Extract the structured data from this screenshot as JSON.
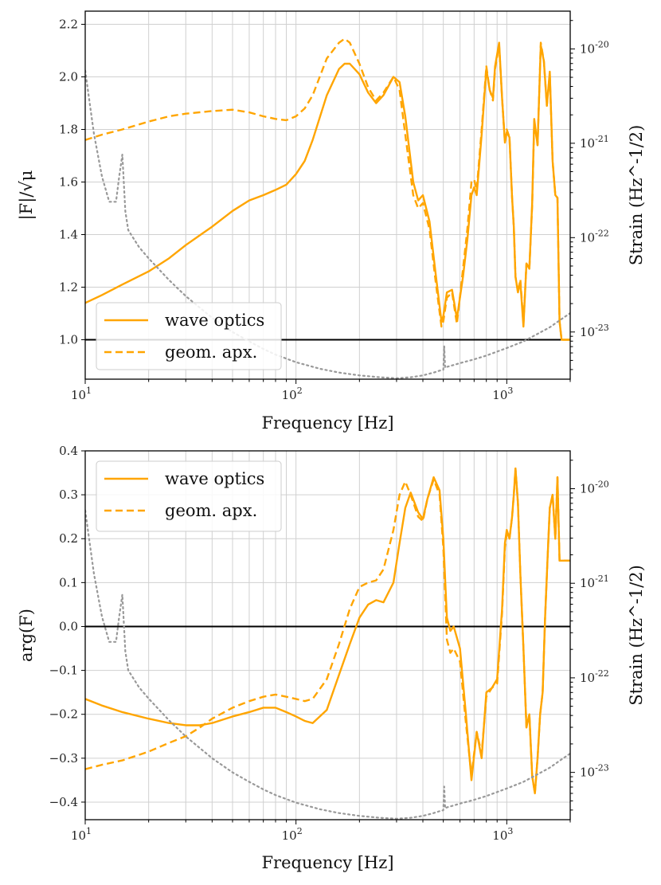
{
  "figure": {
    "colors": {
      "wave": "#FFA500",
      "geom": "#FFA500",
      "noise": "#999999",
      "zero": "#000000",
      "grid": "#d0d0d0",
      "frame": "#000000"
    }
  },
  "chart_data": [
    {
      "id": "magnitude",
      "type": "line",
      "xscale": "log",
      "xlim": [
        10,
        2000
      ],
      "ylim": [
        0.85,
        2.25
      ],
      "xlabel": "Frequency [Hz]",
      "ylabel": "|F|/√μ",
      "ylabel_right": "Strain (Hz^-1/2)",
      "yticks": [
        1.0,
        1.2,
        1.4,
        1.6,
        1.8,
        2.0,
        2.2
      ],
      "ytick_labels": [
        "1.0",
        "1.2",
        "1.4",
        "1.6",
        "1.8",
        "2.0",
        "2.2"
      ],
      "xticks": [
        10,
        100,
        1000
      ],
      "xtick_labels": [
        [
          "10",
          "1"
        ],
        [
          "10",
          "2"
        ],
        [
          "10",
          "3"
        ]
      ],
      "strain_lim_log10": [
        -23.5,
        -19.6
      ],
      "strain_ticks": [
        -23,
        -22,
        -21,
        -20
      ],
      "strain_tick_labels": [
        [
          "10",
          "-23"
        ],
        [
          "10",
          "-22"
        ],
        [
          "10",
          "-21"
        ],
        [
          "10",
          "-20"
        ]
      ],
      "hline": 1.0,
      "legend": {
        "position": "lower-left",
        "entries": [
          {
            "label": "wave optics",
            "style": "solid"
          },
          {
            "label": "geom. apx.",
            "style": "dashed"
          }
        ]
      },
      "series": [
        {
          "name": "wave optics",
          "style": "solid",
          "x": [
            10,
            12,
            15,
            20,
            25,
            30,
            40,
            50,
            60,
            70,
            80,
            90,
            100,
            110,
            120,
            140,
            160,
            170,
            180,
            200,
            220,
            240,
            260,
            290,
            310,
            330,
            360,
            380,
            400,
            430,
            460,
            490,
            500,
            520,
            550,
            580,
            620,
            650,
            680,
            700,
            720,
            760,
            800,
            830,
            860,
            880,
            920,
            950,
            980,
            1000,
            1030,
            1060,
            1080,
            1100,
            1130,
            1160,
            1200,
            1240,
            1280,
            1320,
            1350,
            1400,
            1450,
            1500,
            1550,
            1600,
            1650,
            1700,
            1740,
            1780,
            1820,
            1860,
            1900,
            1960,
            2000
          ],
          "y": [
            1.14,
            1.17,
            1.21,
            1.26,
            1.31,
            1.36,
            1.43,
            1.49,
            1.53,
            1.55,
            1.57,
            1.59,
            1.63,
            1.68,
            1.76,
            1.93,
            2.03,
            2.05,
            2.05,
            2.01,
            1.94,
            1.9,
            1.93,
            2.0,
            1.98,
            1.85,
            1.6,
            1.53,
            1.55,
            1.45,
            1.25,
            1.07,
            1.09,
            1.18,
            1.19,
            1.08,
            1.24,
            1.38,
            1.55,
            1.58,
            1.55,
            1.78,
            2.03,
            1.95,
            1.92,
            2.04,
            2.13,
            1.92,
            1.75,
            1.79,
            1.77,
            1.54,
            1.43,
            1.24,
            1.18,
            1.22,
            1.05,
            1.29,
            1.27,
            1.52,
            1.84,
            1.74,
            2.12,
            2.06,
            1.89,
            2.02,
            1.68,
            1.55,
            1.54,
            1.07,
            1.0,
            1.0,
            1.0,
            1.0,
            1.0
          ]
        },
        {
          "name": "geom. apx.",
          "style": "dashed",
          "x": [
            10,
            12,
            15,
            20,
            25,
            30,
            40,
            50,
            60,
            70,
            80,
            90,
            100,
            110,
            120,
            140,
            160,
            170,
            180,
            200,
            220,
            240,
            260,
            290,
            310,
            330,
            360,
            380,
            400,
            430,
            460,
            490,
            500,
            520,
            550,
            580,
            620,
            650,
            680,
            700,
            720,
            760,
            800,
            830,
            860,
            880,
            920,
            950,
            980,
            1000,
            1030,
            1060,
            1080,
            1100,
            1130,
            1160,
            1200,
            1240,
            1280,
            1320,
            1350,
            1400,
            1450,
            1500,
            1550,
            1600,
            1650,
            1700,
            1740,
            1780,
            1820,
            1860,
            1900,
            1960,
            2000
          ],
          "y": [
            1.76,
            1.78,
            1.8,
            1.83,
            1.85,
            1.86,
            1.87,
            1.875,
            1.865,
            1.85,
            1.84,
            1.835,
            1.85,
            1.88,
            1.93,
            2.07,
            2.13,
            2.145,
            2.13,
            2.05,
            1.96,
            1.91,
            1.94,
            2.0,
            1.95,
            1.78,
            1.55,
            1.5,
            1.52,
            1.42,
            1.22,
            1.05,
            1.07,
            1.16,
            1.18,
            1.06,
            1.27,
            1.42,
            1.6,
            1.61,
            1.57,
            1.8,
            2.04,
            1.95,
            1.91,
            2.03,
            2.12,
            1.92,
            1.75,
            1.8,
            1.77,
            1.54,
            1.43,
            1.24,
            1.18,
            1.23,
            1.06,
            1.29,
            1.27,
            1.51,
            1.83,
            1.74,
            2.13,
            2.06,
            1.89,
            2.01,
            1.68,
            1.55,
            1.54,
            1.07,
            1.0,
            1.0,
            1.0,
            1.0,
            1.0
          ]
        },
        {
          "name": "noise strain (right axis)",
          "style": "dotted",
          "axis": "right",
          "x": [
            10,
            11,
            12,
            13,
            14,
            14.5,
            15,
            15.5,
            16,
            18,
            20,
            25,
            30,
            40,
            50,
            60,
            70,
            80,
            100,
            130,
            160,
            200,
            250,
            300,
            350,
            400,
            450,
            480,
            500,
            505,
            510,
            520,
            600,
            700,
            800,
            1000,
            1200,
            1400,
            1600,
            1800,
            2000
          ],
          "y": [
            -20.23,
            -20.9,
            -21.35,
            -21.62,
            -21.62,
            -21.35,
            -21.12,
            -21.72,
            -21.92,
            -22.1,
            -22.22,
            -22.45,
            -22.62,
            -22.85,
            -23.0,
            -23.1,
            -23.18,
            -23.24,
            -23.32,
            -23.39,
            -23.43,
            -23.46,
            -23.48,
            -23.49,
            -23.48,
            -23.46,
            -23.43,
            -23.41,
            -23.4,
            -23.15,
            -23.38,
            -23.37,
            -23.33,
            -23.29,
            -23.25,
            -23.17,
            -23.1,
            -23.02,
            -22.95,
            -22.87,
            -22.8
          ]
        }
      ]
    },
    {
      "id": "phase",
      "type": "line",
      "xscale": "log",
      "xlim": [
        10,
        2000
      ],
      "ylim": [
        -0.44,
        0.4
      ],
      "xlabel": "Frequency [Hz]",
      "ylabel": "arg(F)",
      "ylabel_right": "Strain (Hz^-1/2)",
      "yticks": [
        -0.4,
        -0.3,
        -0.2,
        -0.1,
        0.0,
        0.1,
        0.2,
        0.3,
        0.4
      ],
      "ytick_labels": [
        "−0.4",
        "−0.3",
        "−0.2",
        "−0.1",
        "0.0",
        "0.1",
        "0.2",
        "0.3",
        "0.4"
      ],
      "xticks": [
        10,
        100,
        1000
      ],
      "xtick_labels": [
        [
          "10",
          "1"
        ],
        [
          "10",
          "2"
        ],
        [
          "10",
          "3"
        ]
      ],
      "strain_lim_log10": [
        -23.5,
        -19.6
      ],
      "strain_ticks": [
        -23,
        -22,
        -21,
        -20
      ],
      "strain_tick_labels": [
        [
          "10",
          "-23"
        ],
        [
          "10",
          "-22"
        ],
        [
          "10",
          "-21"
        ],
        [
          "10",
          "-20"
        ]
      ],
      "hline": 0.0,
      "legend": {
        "position": "upper-left",
        "entries": [
          {
            "label": "wave optics",
            "style": "solid"
          },
          {
            "label": "geom. apx.",
            "style": "dashed"
          }
        ]
      },
      "series": [
        {
          "name": "wave optics",
          "style": "solid",
          "x": [
            10,
            12,
            15,
            20,
            25,
            30,
            35,
            40,
            50,
            60,
            70,
            80,
            90,
            100,
            110,
            120,
            140,
            160,
            180,
            200,
            220,
            240,
            260,
            290,
            310,
            330,
            350,
            380,
            400,
            420,
            450,
            480,
            500,
            520,
            540,
            560,
            600,
            640,
            680,
            720,
            760,
            800,
            850,
            900,
            950,
            980,
            1000,
            1030,
            1060,
            1080,
            1100,
            1130,
            1160,
            1200,
            1240,
            1280,
            1320,
            1360,
            1400,
            1440,
            1480,
            1520,
            1560,
            1600,
            1650,
            1700,
            1740,
            1780,
            1820,
            1860,
            1900,
            1960,
            2000
          ],
          "y": [
            -0.165,
            -0.18,
            -0.195,
            -0.21,
            -0.22,
            -0.225,
            -0.225,
            -0.22,
            -0.205,
            -0.195,
            -0.185,
            -0.185,
            -0.195,
            -0.205,
            -0.215,
            -0.22,
            -0.19,
            -0.11,
            -0.04,
            0.02,
            0.05,
            0.06,
            0.055,
            0.1,
            0.19,
            0.27,
            0.305,
            0.26,
            0.245,
            0.29,
            0.34,
            0.31,
            0.2,
            0.02,
            -0.01,
            0.0,
            -0.05,
            -0.2,
            -0.35,
            -0.24,
            -0.3,
            -0.15,
            -0.14,
            -0.12,
            0.04,
            0.19,
            0.22,
            0.2,
            0.25,
            0.3,
            0.36,
            0.28,
            0.12,
            -0.05,
            -0.23,
            -0.2,
            -0.34,
            -0.38,
            -0.3,
            -0.2,
            -0.15,
            0.02,
            0.15,
            0.27,
            0.3,
            0.2,
            0.34,
            0.15,
            0.15,
            0.15,
            0.15,
            0.15,
            0.15
          ]
        },
        {
          "name": "geom. apx.",
          "style": "dashed",
          "x": [
            10,
            12,
            15,
            20,
            25,
            30,
            35,
            40,
            50,
            60,
            70,
            80,
            90,
            100,
            110,
            120,
            140,
            160,
            180,
            200,
            220,
            240,
            260,
            290,
            310,
            330,
            350,
            380,
            400,
            420,
            450,
            480,
            500,
            520,
            540,
            560,
            600,
            640,
            680,
            720,
            760,
            800,
            850,
            900,
            950,
            980,
            1000,
            1030,
            1060,
            1080,
            1100,
            1130,
            1160,
            1200,
            1240,
            1280,
            1320,
            1360,
            1400,
            1440,
            1480,
            1520,
            1560,
            1600,
            1650,
            1700,
            1740,
            1780,
            1820,
            1860,
            1900,
            1960,
            2000
          ],
          "y": [
            -0.325,
            -0.315,
            -0.305,
            -0.285,
            -0.265,
            -0.25,
            -0.23,
            -0.21,
            -0.185,
            -0.17,
            -0.16,
            -0.155,
            -0.16,
            -0.165,
            -0.17,
            -0.165,
            -0.12,
            -0.04,
            0.04,
            0.09,
            0.1,
            0.105,
            0.13,
            0.22,
            0.3,
            0.33,
            0.3,
            0.25,
            0.24,
            0.29,
            0.335,
            0.3,
            0.18,
            -0.03,
            -0.06,
            -0.05,
            -0.08,
            -0.22,
            -0.34,
            -0.24,
            -0.29,
            -0.16,
            -0.14,
            -0.13,
            0.03,
            0.18,
            0.21,
            0.2,
            0.25,
            0.3,
            0.36,
            0.28,
            0.12,
            -0.05,
            -0.23,
            -0.2,
            -0.34,
            -0.38,
            -0.3,
            -0.2,
            -0.15,
            0.02,
            0.15,
            0.27,
            0.3,
            0.2,
            0.34,
            0.15,
            0.15,
            0.15,
            0.15,
            0.15,
            0.15
          ]
        },
        {
          "name": "noise strain (right axis)",
          "style": "dotted",
          "axis": "right",
          "x": [
            10,
            11,
            12,
            13,
            14,
            14.5,
            15,
            15.5,
            16,
            18,
            20,
            25,
            30,
            40,
            50,
            60,
            70,
            80,
            100,
            130,
            160,
            200,
            250,
            300,
            350,
            400,
            450,
            480,
            500,
            505,
            510,
            520,
            600,
            700,
            800,
            1000,
            1200,
            1400,
            1600,
            1800,
            2000
          ],
          "y": [
            -20.23,
            -20.9,
            -21.35,
            -21.62,
            -21.62,
            -21.35,
            -21.12,
            -21.72,
            -21.92,
            -22.1,
            -22.22,
            -22.45,
            -22.62,
            -22.85,
            -23.0,
            -23.1,
            -23.18,
            -23.24,
            -23.32,
            -23.39,
            -23.43,
            -23.46,
            -23.48,
            -23.49,
            -23.48,
            -23.46,
            -23.43,
            -23.41,
            -23.4,
            -23.15,
            -23.38,
            -23.37,
            -23.33,
            -23.29,
            -23.25,
            -23.17,
            -23.1,
            -23.02,
            -22.95,
            -22.87,
            -22.8
          ]
        }
      ]
    }
  ]
}
